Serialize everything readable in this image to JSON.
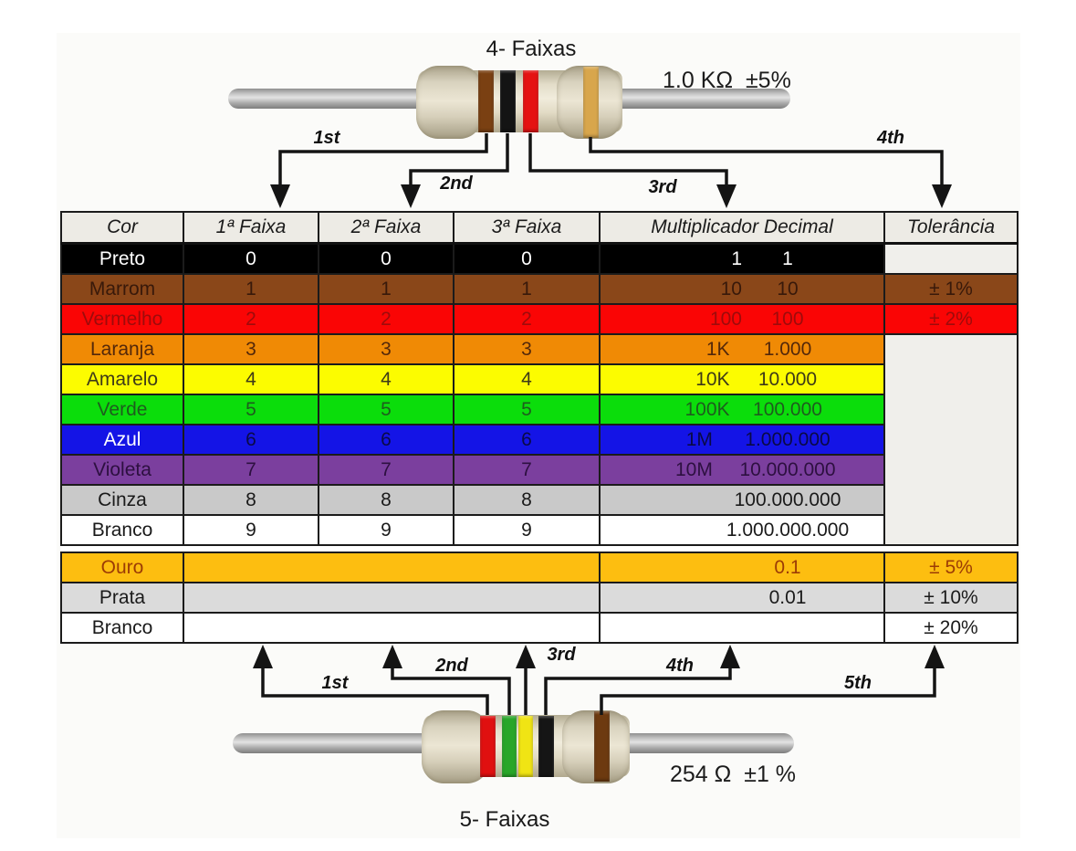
{
  "top_resistor": {
    "title": "4- Faixas",
    "value": "1.0 KΩ  ±5%",
    "bands": [
      {
        "name": "brown-band",
        "hex": "#7a4012"
      },
      {
        "name": "black-band",
        "hex": "#141414"
      },
      {
        "name": "red-band",
        "hex": "#e51212"
      },
      {
        "name": "gold-band",
        "hex": "#d8a64c"
      }
    ],
    "arrow_labels": [
      "1st",
      "2nd",
      "3rd",
      "4th"
    ]
  },
  "bottom_resistor": {
    "title": "5- Faixas",
    "value": "254 Ω  ±1 %",
    "bands": [
      {
        "name": "red-band",
        "hex": "#e01010"
      },
      {
        "name": "green-band",
        "hex": "#29a629"
      },
      {
        "name": "yellow-band",
        "hex": "#f0e414"
      },
      {
        "name": "black-band",
        "hex": "#151515"
      },
      {
        "name": "brown-band",
        "hex": "#6d3a10"
      }
    ],
    "arrow_labels": [
      "1st",
      "2nd",
      "3rd",
      "4th",
      "5th"
    ]
  },
  "table": {
    "headers": [
      "Cor",
      "1ª Faixa",
      "2ª Faixa",
      "3ª Faixa",
      "Multiplicador Decimal",
      "Tolerância"
    ],
    "empty_tol_bg": "#f0efeb",
    "rows": [
      {
        "color": "Preto",
        "bg": "#000000",
        "fg": "#ffffff",
        "f1": "0",
        "f2": "0",
        "f3": "0",
        "mp": "1",
        "mv": "1",
        "tol": {
          "type": "plain"
        }
      },
      {
        "color": "Marrom",
        "bg": "#8a4719",
        "fg": "#38190a",
        "f1": "1",
        "f2": "1",
        "f3": "1",
        "mp": "10",
        "mv": "10",
        "tol": {
          "type": "cell",
          "text": "± 1%"
        }
      },
      {
        "color": "Vermelho",
        "bg": "#fa0505",
        "fg": "#9e0b0b",
        "f1": "2",
        "f2": "2",
        "f3": "2",
        "mp": "100",
        "mv": "100",
        "tol": {
          "type": "cell",
          "text": "± 2%"
        }
      },
      {
        "color": "Laranja",
        "bg": "#f08a05",
        "fg": "#54280a",
        "f1": "3",
        "f2": "3",
        "f3": "3",
        "mp": "1K",
        "mv": "1.000",
        "tol": {
          "type": "merge",
          "rows": 7
        }
      },
      {
        "color": "Amarelo",
        "bg": "#fcfc00",
        "fg": "#3e3a18",
        "f1": "4",
        "f2": "4",
        "f3": "4",
        "mp": "10K",
        "mv": "10.000",
        "tol": {
          "type": "none"
        }
      },
      {
        "color": "Verde",
        "bg": "#0bdd0b",
        "fg": "#1e5c1e",
        "f1": "5",
        "f2": "5",
        "f3": "5",
        "mp": "100K",
        "mv": "100.000",
        "tol": {
          "type": "none"
        }
      },
      {
        "color": "Azul",
        "bg": "#1414e6",
        "fg": "#ffffff",
        "numfg": "#0a0a46",
        "f1": "6",
        "f2": "6",
        "f3": "6",
        "mp": "1M",
        "mv": "1.000.000",
        "tol": {
          "type": "none"
        }
      },
      {
        "color": "Violeta",
        "bg": "#7b3f9e",
        "fg": "#2d1040",
        "f1": "7",
        "f2": "7",
        "f3": "7",
        "mp": "10M",
        "mv": "10.000.000",
        "tol": {
          "type": "none"
        }
      },
      {
        "color": "Cinza",
        "bg": "#c9c9c9",
        "fg": "#1a1a1a",
        "f1": "8",
        "f2": "8",
        "f3": "8",
        "mp": "",
        "mv": "100.000.000",
        "tol": {
          "type": "none"
        }
      },
      {
        "color": "Branco",
        "bg": "#ffffff",
        "fg": "#1a1a1a",
        "f1": "9",
        "f2": "9",
        "f3": "9",
        "mp": "",
        "mv": "1.000.000.000",
        "tol": {
          "type": "none"
        }
      },
      {
        "gap": true
      },
      {
        "color": "Ouro",
        "bg": "#fdbe10",
        "fg": "#9c3c05",
        "merged_faixa": true,
        "mp": "",
        "mv": "0.1",
        "tol": {
          "type": "cell",
          "text": "± 5%"
        }
      },
      {
        "color": "Prata",
        "bg": "#dbdbdb",
        "fg": "#1a1a1a",
        "merged_faixa": true,
        "mp": "",
        "mv": "0.01",
        "tol": {
          "type": "cell",
          "text": "± 10%"
        }
      },
      {
        "color": "Branco",
        "bg": "#ffffff",
        "fg": "#1a1a1a",
        "merged_faixa": true,
        "mp": "",
        "mv": "",
        "tol": {
          "type": "cell",
          "text": "± 20%"
        }
      }
    ]
  }
}
